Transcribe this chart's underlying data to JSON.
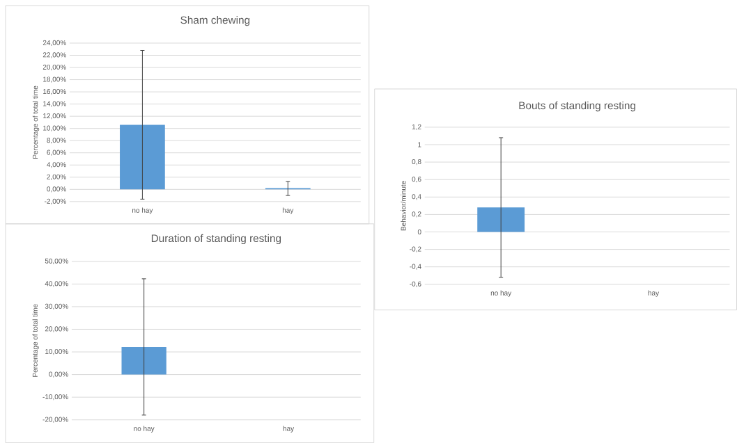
{
  "chart_data": [
    {
      "type": "bar",
      "title": "Sham chewing",
      "ylabel": "Percentage of total time",
      "categories": [
        "no hay",
        "hay"
      ],
      "values": [
        10.6,
        0.2
      ],
      "errors": [
        12.2,
        [
          -1.0,
          1.3
        ]
      ],
      "color": "#5b9bd5",
      "ylim": [
        -2,
        24
      ],
      "yticks": [
        {
          "value": -2,
          "label": "-2,00%"
        },
        {
          "value": 0,
          "label": "0,00%"
        },
        {
          "value": 2,
          "label": "2,00%"
        },
        {
          "value": 4,
          "label": "4,00%"
        },
        {
          "value": 6,
          "label": "6,00%"
        },
        {
          "value": 8,
          "label": "8,00%"
        },
        {
          "value": 10,
          "label": "10,00%"
        },
        {
          "value": 12,
          "label": "12,00%"
        },
        {
          "value": 14,
          "label": "14,00%"
        },
        {
          "value": 16,
          "label": "16,00%"
        },
        {
          "value": 18,
          "label": "18,00%"
        },
        {
          "value": 20,
          "label": "20,00%"
        },
        {
          "value": 22,
          "label": "22,00%"
        },
        {
          "value": 24,
          "label": "24,00%"
        }
      ],
      "grid": "y"
    },
    {
      "type": "bar",
      "title": "Duration of standing resting",
      "ylabel": "Percentage of total time",
      "categories": [
        "no hay",
        "hay"
      ],
      "values": [
        12.2,
        0
      ],
      "errors": [
        30.1,
        null
      ],
      "color": "#5b9bd5",
      "ylim": [
        -20,
        50
      ],
      "yticks": [
        {
          "value": -20,
          "label": "-20,00%"
        },
        {
          "value": -10,
          "label": "-10,00%"
        },
        {
          "value": 0,
          "label": "0,00%"
        },
        {
          "value": 10,
          "label": "10,00%"
        },
        {
          "value": 20,
          "label": "20,00%"
        },
        {
          "value": 30,
          "label": "30,00%"
        },
        {
          "value": 40,
          "label": "40,00%"
        },
        {
          "value": 50,
          "label": "50,00%"
        }
      ],
      "grid": "y"
    },
    {
      "type": "bar",
      "title": "Bouts of standing resting",
      "ylabel": "Behavior/minute",
      "categories": [
        "no hay",
        "hay"
      ],
      "values": [
        0.28,
        0
      ],
      "errors": [
        0.8,
        null
      ],
      "color": "#5b9bd5",
      "ylim": [
        -0.6,
        1.2
      ],
      "yticks": [
        {
          "value": -0.6,
          "label": "-0,6"
        },
        {
          "value": -0.4,
          "label": "-0,4"
        },
        {
          "value": -0.2,
          "label": "-0,2"
        },
        0,
        {
          "value": 0.2,
          "label": "0,2"
        },
        {
          "value": 0.4,
          "label": "0,4"
        },
        {
          "value": 0.6,
          "label": "0,6"
        },
        {
          "value": 0.8,
          "label": "0,8"
        },
        1,
        {
          "value": 1.2,
          "label": "1,2"
        }
      ],
      "grid": "y"
    }
  ]
}
